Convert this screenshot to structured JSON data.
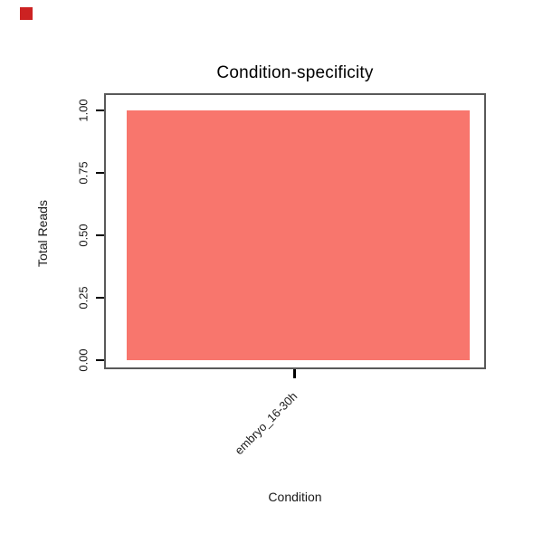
{
  "page": {
    "background": "#ffffff"
  },
  "corner_marker": {
    "color": "#cc2222"
  },
  "chart_data": {
    "type": "bar",
    "title": "Condition-specificity",
    "xlabel": "Condition",
    "ylabel": "Total Reads",
    "categories": [
      "embryo_16-30h"
    ],
    "values": [
      1.0
    ],
    "ylim": [
      0,
      1
    ],
    "ytick_labels": [
      "0.00",
      "0.25",
      "0.50",
      "0.75",
      "1.00"
    ],
    "ytick_values": [
      0,
      0.25,
      0.5,
      0.75,
      1.0
    ],
    "bar_color": "#F8766D",
    "panel_border_color": "#595959",
    "grid": "off",
    "legend": "none"
  }
}
